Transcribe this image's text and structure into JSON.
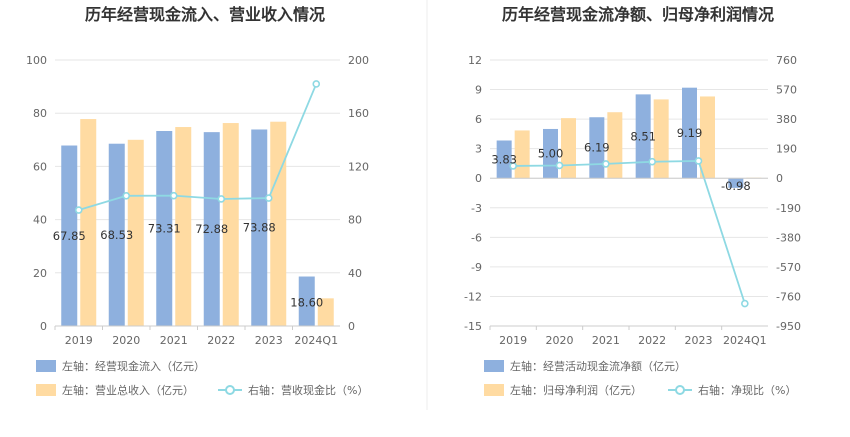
{
  "colors": {
    "bar_primary": "#8eb0de",
    "bar_secondary": "#ffdba2",
    "line": "#8ed9e3",
    "grid": "#e6e6e6",
    "axis": "#cccccc",
    "divider": "#eeeeee"
  },
  "chart_data": [
    {
      "type": "bar",
      "title": "历年经营现金流入、营业收入情况",
      "categories": [
        "2019",
        "2020",
        "2021",
        "2022",
        "2023",
        "2024Q1"
      ],
      "left_axis": {
        "ticks": [
          "0",
          "20",
          "40",
          "60",
          "80",
          "100"
        ],
        "ylim": [
          0,
          100
        ]
      },
      "right_axis": {
        "ticks": [
          "0",
          "40",
          "80",
          "120",
          "160",
          "200"
        ],
        "ylim": [
          0,
          200
        ]
      },
      "series": [
        {
          "name": "左轴：经营现金流入（亿元）",
          "type": "bar",
          "axis": "left",
          "values": [
            67.85,
            68.53,
            73.31,
            72.88,
            73.88,
            18.6
          ],
          "labels": [
            "67.85",
            "68.53",
            "73.31",
            "72.88",
            "73.88",
            "18.60"
          ]
        },
        {
          "name": "左轴：营业总收入（亿元）",
          "type": "bar",
          "axis": "left",
          "values": [
            77.8,
            70.0,
            74.8,
            76.3,
            76.8,
            10.4
          ]
        },
        {
          "name": "右轴：营收现金比（%）",
          "type": "line",
          "axis": "right",
          "values": [
            87.2,
            97.9,
            98.0,
            95.5,
            96.2,
            182.0
          ]
        }
      ],
      "grid": true,
      "legend_position": "bottom-left"
    },
    {
      "type": "bar",
      "title": "历年经营现金流净额、归母净利润情况",
      "categories": [
        "2019",
        "2020",
        "2021",
        "2022",
        "2023",
        "2024Q1"
      ],
      "left_axis": {
        "ticks": [
          "-15",
          "-12",
          "-9",
          "-6",
          "-3",
          "0",
          "3",
          "6",
          "9",
          "12"
        ],
        "ylim": [
          -15,
          12
        ]
      },
      "right_axis": {
        "ticks": [
          "-950",
          "-760",
          "-570",
          "-380",
          "-190",
          "0",
          "190",
          "380",
          "570",
          "760"
        ],
        "ylim": [
          -950,
          760
        ]
      },
      "series": [
        {
          "name": "左轴：经营活动现金流净额（亿元）",
          "type": "bar",
          "axis": "left",
          "values": [
            3.83,
            5.0,
            6.19,
            8.51,
            9.19,
            -0.98
          ],
          "labels": [
            "3.83",
            "5.00",
            "6.19",
            "8.51",
            "9.19",
            "-0.98"
          ]
        },
        {
          "name": "左轴：归母净利润（亿元）",
          "type": "bar",
          "axis": "left",
          "values": [
            4.85,
            6.1,
            6.7,
            8.0,
            8.3,
            0.05
          ]
        },
        {
          "name": "右轴：净现比（%）",
          "type": "line",
          "axis": "right",
          "values": [
            79,
            82,
            92,
            106,
            111,
            -806
          ]
        }
      ],
      "grid": true,
      "legend_position": "bottom-left"
    }
  ]
}
